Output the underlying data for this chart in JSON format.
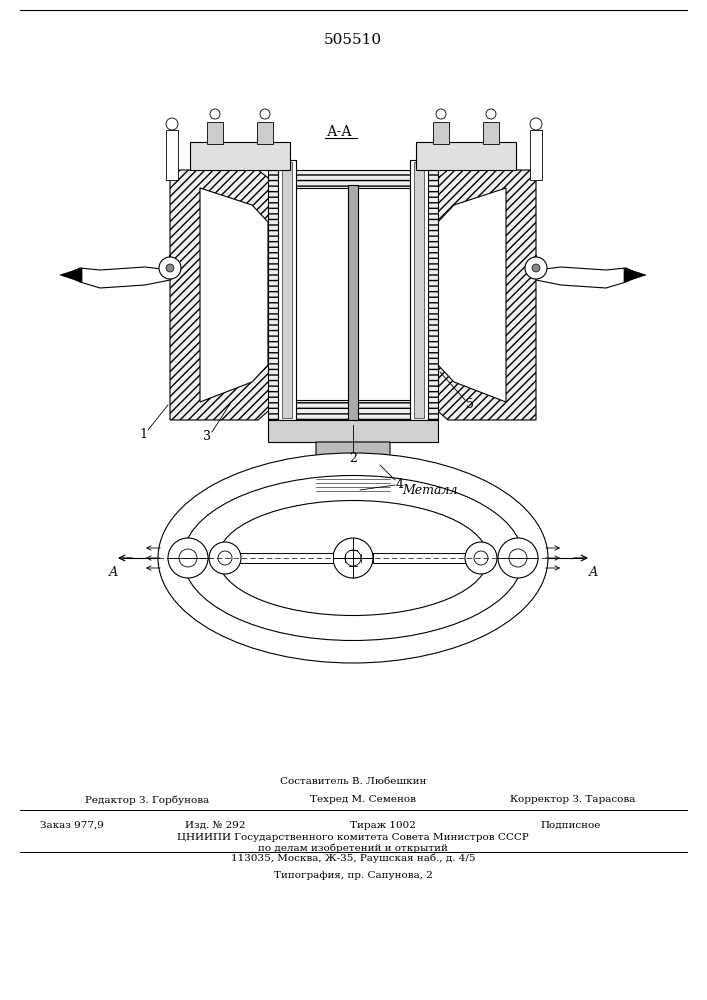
{
  "title": "505510",
  "footer": {
    "line1": "Составитель В. Любешкин",
    "line2_left": "Редактор З. Горбунова",
    "line2_mid": "Техред М. Семенов",
    "line2_right": "Корректор З. Тарасова",
    "line3_1": "Заказ 977,9",
    "line3_2": "Изд. № 292",
    "line3_3": "Тираж 1002",
    "line3_4": "Подписное",
    "line4": "ЦНИИПИ Государственного комитета Совета Министров СССР",
    "line5": "по делам изобретений и открытий",
    "line6": "113035, Москва, Ж-35, Раушская наб., д. 4/5",
    "line7": "Типография, пр. Сапунова, 2"
  },
  "bg_color": "#ffffff",
  "line_color": "#000000"
}
